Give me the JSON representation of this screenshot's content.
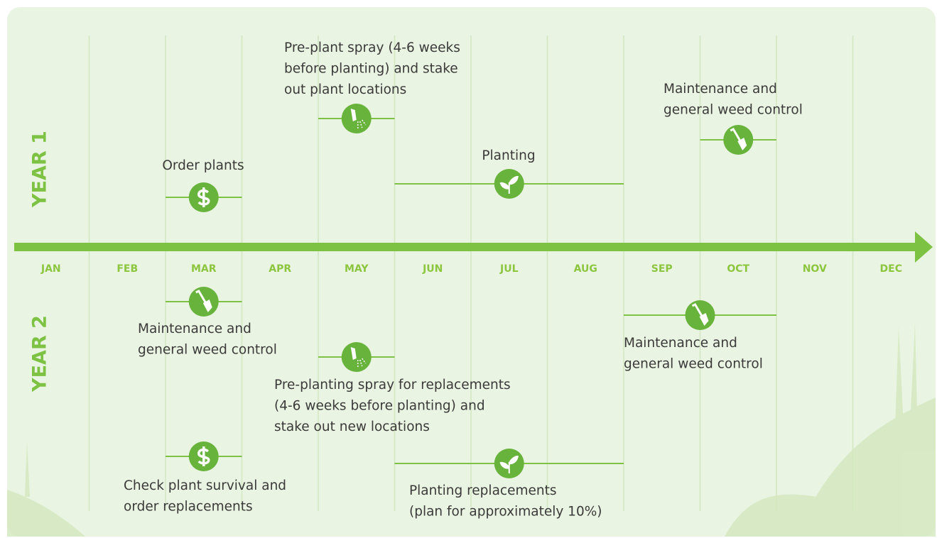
{
  "year_labels": [
    "YEAR 1",
    "YEAR 2"
  ],
  "months": [
    "JAN",
    "FEB",
    "MAR",
    "APR",
    "MAY",
    "JUN",
    "JUL",
    "AUG",
    "SEP",
    "OCT",
    "NOV",
    "DEC"
  ],
  "events": [
    {
      "lines": [
        "Order plants"
      ]
    },
    {
      "lines": [
        "Pre-plant spray (4-6 weeks",
        "before planting) and stake",
        "out plant locations"
      ]
    },
    {
      "lines": [
        "Planting"
      ]
    },
    {
      "lines": [
        "Maintenance and",
        "general weed control"
      ]
    },
    {
      "lines": [
        "Maintenance and",
        "general weed control"
      ]
    },
    {
      "lines": [
        "Pre-planting spray for replacements",
        "(4-6 weeks before planting) and",
        "stake out new locations"
      ]
    },
    {
      "lines": [
        "Maintenance and",
        "general weed control"
      ]
    },
    {
      "lines": [
        "Check plant survival and",
        "order replacements"
      ]
    },
    {
      "lines": [
        "Planting replacements",
        "(plan for approximately 10%)"
      ]
    }
  ]
}
